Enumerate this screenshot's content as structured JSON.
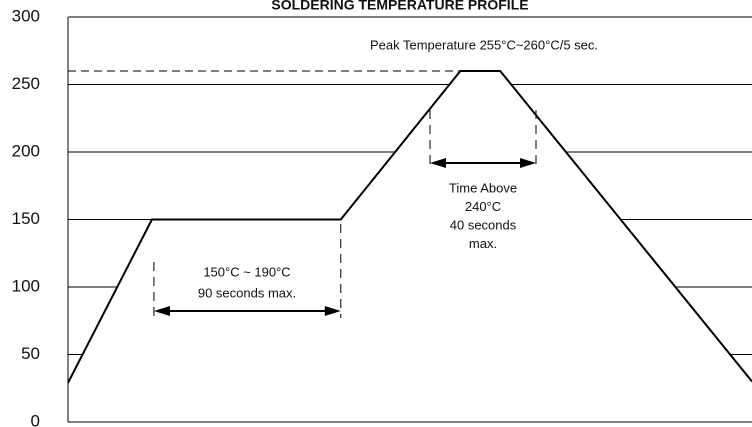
{
  "chart_data": {
    "type": "line",
    "title": "SOLDERING TEMPERATURE PROFILE",
    "x": [
      0,
      40,
      130,
      187,
      206,
      326
    ],
    "series": [
      {
        "name": null,
        "color": "#000000",
        "values": [
          29,
          150,
          150,
          260,
          260,
          30
        ]
      }
    ],
    "xlim": [
      0,
      326
    ],
    "ylim": [
      0,
      300
    ],
    "yticks": [
      0,
      50,
      100,
      150,
      200,
      250,
      300
    ],
    "grid": true,
    "peak_line": 260,
    "annotations": {
      "peak": "Peak Temperature 255°C~260°C/5 sec.",
      "soak": [
        "150°C ~ 190°C",
        "90 seconds max."
      ],
      "above": [
        "Time Above",
        "240°C",
        "40 seconds",
        "max."
      ]
    }
  }
}
